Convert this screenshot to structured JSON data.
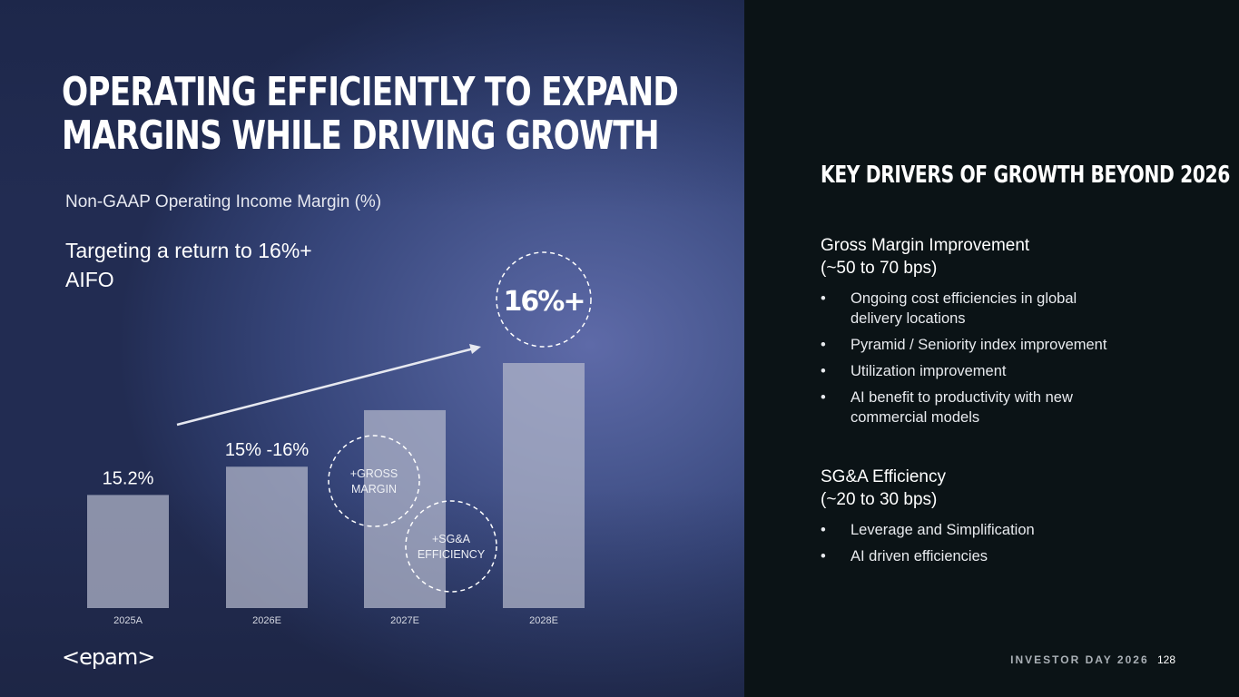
{
  "slide": {
    "title": "Operating efficiently to expand margins while driving growth",
    "subtitle": "Non-GAAP Operating Income Margin (%)",
    "target_text": "Targeting a return to 16%+ AIFO",
    "logo": "<epam>",
    "footer_label": "INVESTOR DAY 2026",
    "page_number": "128"
  },
  "chart_data": {
    "type": "bar",
    "categories": [
      "2025A",
      "2026E",
      "2027E",
      "2028E"
    ],
    "values": [
      15.2,
      15.5,
      16.1,
      16.6
    ],
    "bar_labels": [
      "15.2%",
      "15% -16%",
      "",
      ""
    ],
    "target_label": "16%+",
    "annotations": [
      "+GROSS MARGIN",
      "+SG&A EFFICIENCY"
    ],
    "ylim": [
      14.0,
      17.0
    ],
    "title": "Non-GAAP Operating Income Margin (%)",
    "xlabel": "",
    "ylabel": "",
    "colors": {
      "bar": "#b4b9cc",
      "circle": "#ffffff",
      "arrow": "#e6e8f0"
    }
  },
  "drivers": {
    "title": "Key drivers of growth beyond 2026",
    "sections": [
      {
        "heading_line1": "Gross Margin Improvement",
        "heading_line2": "(~50 to 70 bps)",
        "bullets": [
          "Ongoing cost efficiencies in global delivery locations",
          "Pyramid / Seniority index improvement",
          "Utilization improvement",
          "AI benefit to productivity with new commercial models"
        ]
      },
      {
        "heading_line1": "SG&A Efficiency",
        "heading_line2": "(~20 to 30 bps)",
        "bullets": [
          "Leverage and Simplification",
          "AI driven efficiencies"
        ]
      }
    ]
  }
}
